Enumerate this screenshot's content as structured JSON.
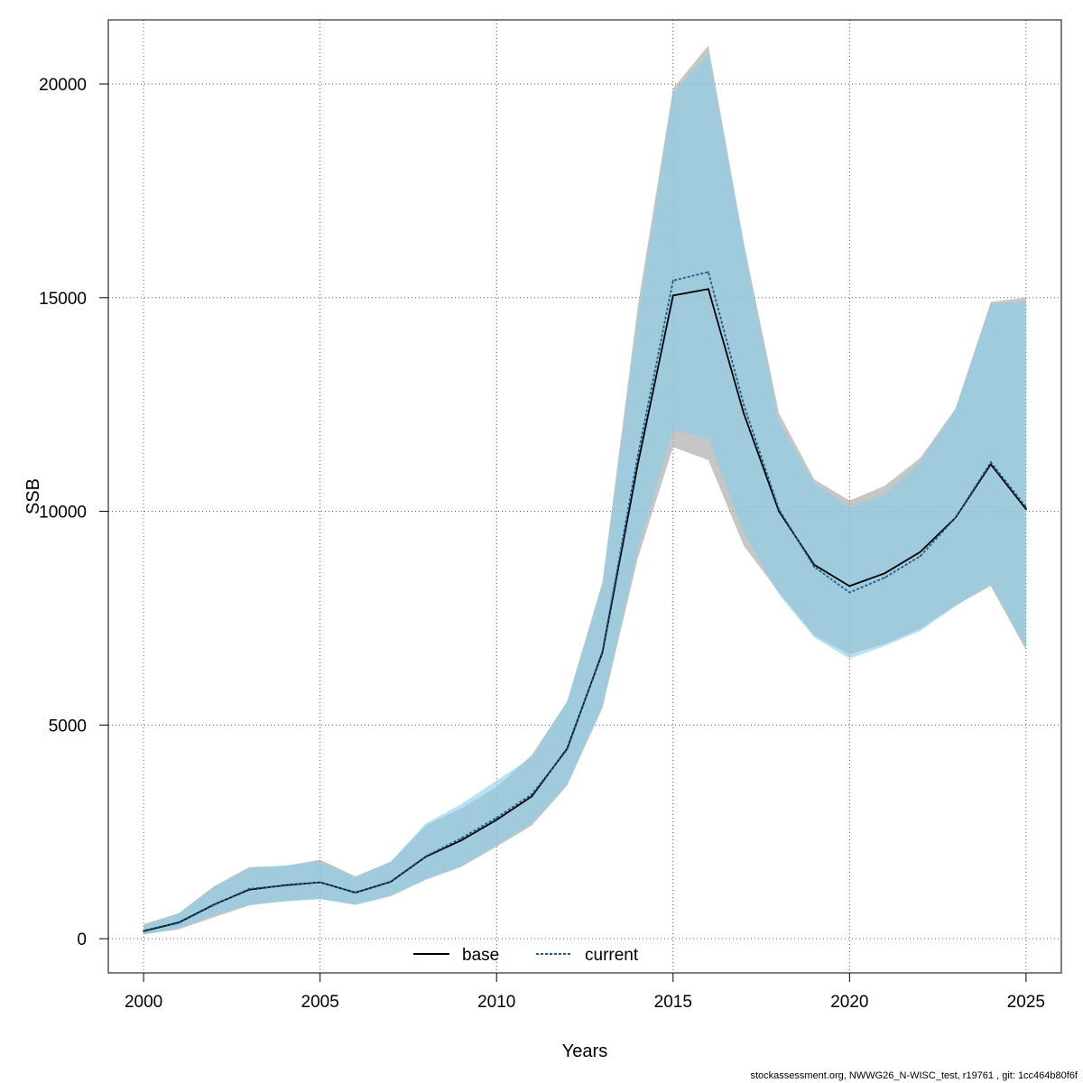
{
  "chart_data": {
    "type": "area",
    "xlabel": "Years",
    "ylabel": "SSB",
    "xlim": [
      1999,
      2026
    ],
    "ylim": [
      -800,
      21500
    ],
    "xticks": [
      2000,
      2005,
      2010,
      2015,
      2020,
      2025
    ],
    "yticks": [
      0,
      5000,
      10000,
      15000,
      20000
    ],
    "grid": true,
    "legend_position": "bottom-center",
    "x": [
      2000,
      2001,
      2002,
      2003,
      2004,
      2005,
      2006,
      2007,
      2008,
      2009,
      2010,
      2011,
      2012,
      2013,
      2014,
      2015,
      2016,
      2017,
      2018,
      2019,
      2020,
      2021,
      2022,
      2023,
      2024,
      2025
    ],
    "series": [
      {
        "name": "base",
        "line_style": "solid",
        "color": "#000000",
        "band_color": "#a0a0a0",
        "values": [
          180,
          380,
          800,
          1150,
          1250,
          1320,
          1080,
          1330,
          1920,
          2300,
          2780,
          3330,
          4450,
          6700,
          11100,
          15050,
          15200,
          12300,
          10000,
          8750,
          8250,
          8550,
          9050,
          9850,
          11100,
          10050
        ],
        "lower": [
          100,
          220,
          500,
          780,
          880,
          930,
          800,
          1000,
          1380,
          1680,
          2150,
          2650,
          3580,
          5400,
          8900,
          11500,
          11200,
          9200,
          8100,
          7100,
          6650,
          6900,
          7250,
          7800,
          8250,
          6750
        ],
        "upper": [
          340,
          600,
          1230,
          1680,
          1700,
          1850,
          1460,
          1800,
          2650,
          3050,
          3550,
          4300,
          5550,
          8350,
          14800,
          19900,
          20900,
          16300,
          12300,
          10750,
          10250,
          10600,
          11250,
          12400,
          14900,
          15000
        ]
      },
      {
        "name": "current",
        "line_style": "dotted",
        "color": "#1a5c8a",
        "band_color": "#87ceeb",
        "values": [
          170,
          370,
          790,
          1170,
          1240,
          1320,
          1080,
          1340,
          1930,
          2350,
          2830,
          3380,
          4420,
          6730,
          11300,
          15400,
          15600,
          12500,
          10050,
          8700,
          8100,
          8450,
          8950,
          9850,
          11150,
          10100
        ],
        "lower": [
          100,
          240,
          560,
          800,
          870,
          930,
          790,
          990,
          1390,
          1700,
          2200,
          2700,
          3620,
          5450,
          9100,
          11900,
          11700,
          9500,
          8050,
          7050,
          6550,
          6850,
          7200,
          7780,
          8300,
          6800
        ],
        "upper": [
          300,
          590,
          1200,
          1650,
          1720,
          1800,
          1440,
          1800,
          2700,
          3150,
          3700,
          4250,
          5550,
          8300,
          14500,
          19800,
          20700,
          16300,
          12100,
          10650,
          10100,
          10400,
          11150,
          12400,
          14850,
          14900
        ]
      }
    ]
  },
  "footer_text": "stockassessment.org, NWWG26_N-WISC_test, r19761 , git: 1cc464b80f6f"
}
